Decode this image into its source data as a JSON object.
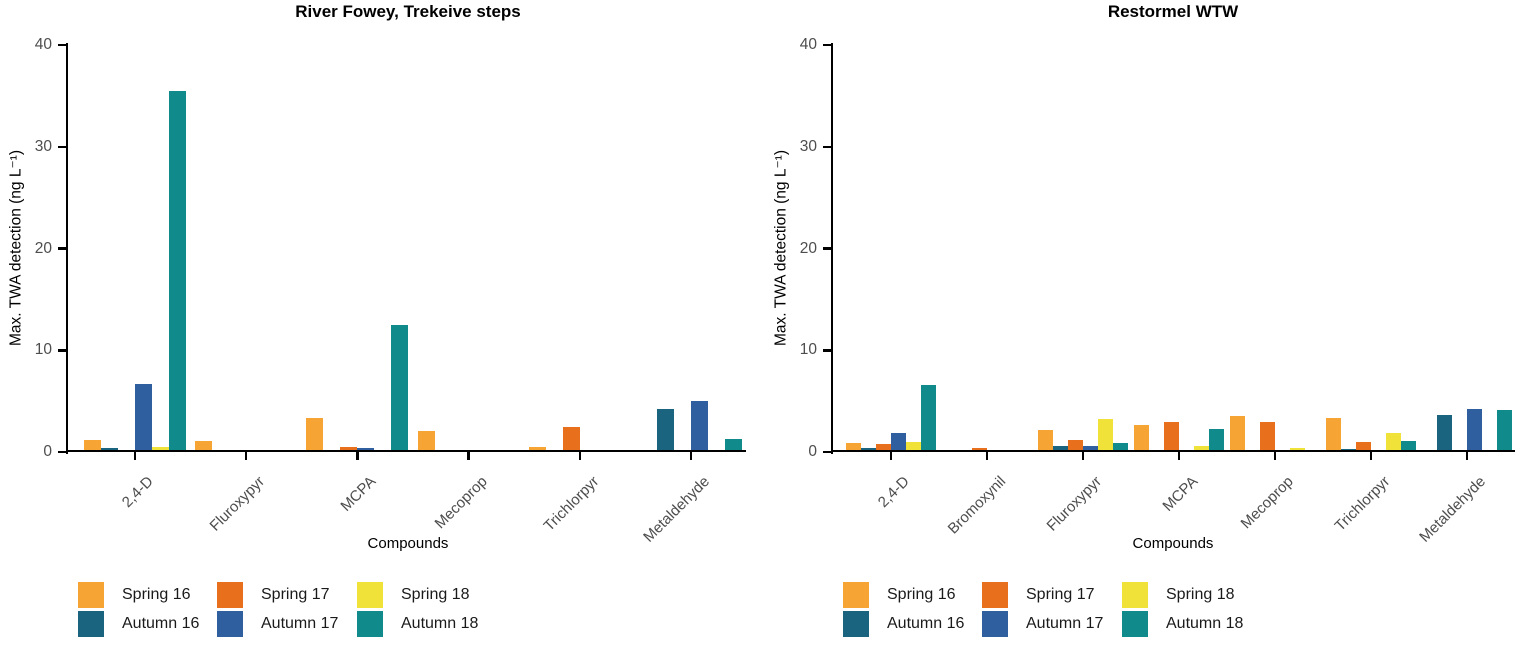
{
  "legend": {
    "items": [
      {
        "label": "Spring 16",
        "color": "#F6A433"
      },
      {
        "label": "Autumn 16",
        "color": "#1A6480"
      },
      {
        "label": "Spring 17",
        "color": "#E8701C"
      },
      {
        "label": "Autumn 17",
        "color": "#305FA0"
      },
      {
        "label": "Spring 18",
        "color": "#F0E239"
      },
      {
        "label": "Autumn 18",
        "color": "#118A8C"
      }
    ]
  },
  "chart_data": [
    {
      "type": "bar",
      "title": "River Fowey, Trekeive steps",
      "xlabel": "Compounds",
      "ylabel": "Max. TWA detection (ng L⁻¹)",
      "ylim": [
        0,
        40
      ],
      "yticks": [
        0,
        10,
        20,
        30,
        40
      ],
      "grid": false,
      "legend_position": "bottom",
      "categories": [
        "2,4-D",
        "Fluroxypyr",
        "MCPA",
        "Mecoprop",
        "Trichlorpyr",
        "Metaldehyde"
      ],
      "series": [
        {
          "name": "Spring 16",
          "color": "#F6A433",
          "values": [
            1.2,
            1.1,
            3.3,
            2.1,
            0.5,
            0
          ]
        },
        {
          "name": "Autumn 16",
          "color": "#1A6480",
          "values": [
            0.35,
            0,
            0,
            0,
            0,
            4.2
          ]
        },
        {
          "name": "Spring 17",
          "color": "#E8701C",
          "values": [
            0,
            0,
            0.5,
            0,
            2.5,
            0
          ]
        },
        {
          "name": "Autumn 17",
          "color": "#305FA0",
          "values": [
            6.7,
            0,
            0.35,
            0,
            0,
            5.0
          ]
        },
        {
          "name": "Spring 18",
          "color": "#F0E239",
          "values": [
            0.5,
            0,
            0,
            0,
            0,
            0
          ]
        },
        {
          "name": "Autumn 18",
          "color": "#118A8C",
          "values": [
            35.5,
            0,
            12.5,
            0,
            0,
            1.3
          ]
        }
      ]
    },
    {
      "type": "bar",
      "title": "Restormel WTW",
      "xlabel": "Compounds",
      "ylabel": "Max. TWA detection (ng L⁻¹)",
      "ylim": [
        0,
        40
      ],
      "yticks": [
        0,
        10,
        20,
        30,
        40
      ],
      "grid": false,
      "legend_position": "bottom",
      "categories": [
        "2,4-D",
        "Bromoxynil",
        "Fluroxypyr",
        "MCPA",
        "Mecoprop",
        "Trichlorpyr",
        "Metaldehyde"
      ],
      "series": [
        {
          "name": "Spring 16",
          "color": "#F6A433",
          "values": [
            0.9,
            0,
            2.2,
            2.7,
            3.5,
            3.3,
            0
          ]
        },
        {
          "name": "Autumn 16",
          "color": "#1A6480",
          "values": [
            0.4,
            0,
            0.6,
            0.2,
            0,
            0.3,
            3.6
          ]
        },
        {
          "name": "Spring 17",
          "color": "#E8701C",
          "values": [
            0.8,
            0.4,
            1.2,
            2.9,
            2.9,
            1.0,
            0
          ]
        },
        {
          "name": "Autumn 17",
          "color": "#305FA0",
          "values": [
            1.9,
            0,
            0.6,
            0.2,
            0,
            0,
            4.2
          ]
        },
        {
          "name": "Spring 18",
          "color": "#F0E239",
          "values": [
            1.0,
            0,
            3.2,
            0.6,
            0.4,
            1.9,
            0
          ]
        },
        {
          "name": "Autumn 18",
          "color": "#118A8C",
          "values": [
            6.6,
            0,
            0.9,
            2.3,
            0,
            1.1,
            4.1
          ]
        }
      ]
    }
  ]
}
